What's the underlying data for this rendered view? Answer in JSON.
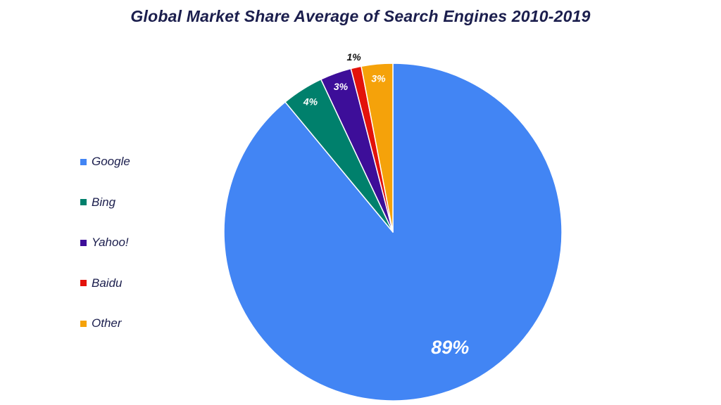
{
  "chart_data": {
    "type": "pie",
    "title": "Global Market Share Average of Search Engines 2010-2019",
    "categories": [
      "Google",
      "Bing",
      "Yahoo!",
      "Baidu",
      "Other"
    ],
    "values": [
      89,
      4,
      3,
      1,
      3
    ],
    "value_labels": [
      "89%",
      "4%",
      "3%",
      "1%",
      "3%"
    ],
    "colors": [
      "#4285f4",
      "#00806c",
      "#3d0e99",
      "#e3120b",
      "#f5a20a"
    ],
    "label_colors": [
      "#ffffff",
      "#ffffff",
      "#ffffff",
      "#111111",
      "#ffffff"
    ],
    "legend_position": "left",
    "start": "12 o'clock",
    "direction": "clockwise"
  }
}
